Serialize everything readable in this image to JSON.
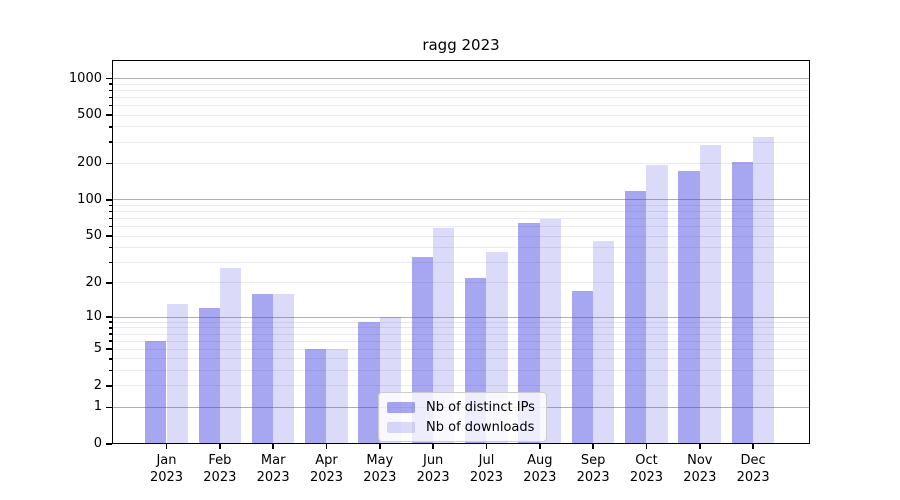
{
  "title": "ragg 2023",
  "chart_data": {
    "type": "bar",
    "title": "ragg 2023",
    "categories": [
      "Jan 2023",
      "Feb 2023",
      "Mar 2023",
      "Apr 2023",
      "May 2023",
      "Jun 2023",
      "Jul 2023",
      "Aug 2023",
      "Sep 2023",
      "Oct 2023",
      "Nov 2023",
      "Dec 2023"
    ],
    "series": [
      {
        "name": "Nb of distinct IPs",
        "color": "rgba(64,64,224,0.46)",
        "values": [
          6,
          12,
          16,
          5,
          9,
          33,
          22,
          64,
          17,
          118,
          175,
          205
        ]
      },
      {
        "name": "Nb of downloads",
        "color": "rgba(64,64,224,0.19)",
        "values": [
          13,
          27,
          16,
          5,
          10,
          58,
          37,
          70,
          45,
          195,
          285,
          330
        ]
      }
    ],
    "xlabel": "",
    "ylabel": "",
    "yscale": "log1p",
    "ylim": [
      0,
      1421
    ],
    "yticks": [
      0,
      1,
      2,
      5,
      10,
      20,
      50,
      100,
      200,
      500,
      1000
    ],
    "ytick_labels": [
      "0",
      "1",
      "2",
      "5",
      "10",
      "20",
      "50",
      "100",
      "200",
      "500",
      "1000"
    ],
    "major_gridlines": [
      1,
      10,
      100,
      1000
    ],
    "minor_gridlines": [
      2,
      3,
      4,
      5,
      6,
      7,
      8,
      9,
      20,
      30,
      40,
      50,
      60,
      70,
      80,
      90,
      200,
      300,
      400,
      500,
      600,
      700,
      800,
      900
    ],
    "grid": true,
    "legend_position": "lower center"
  },
  "legend": {
    "items": [
      {
        "label": "Nb of distinct IPs"
      },
      {
        "label": "Nb of downloads"
      }
    ]
  },
  "colors": {
    "bar_distinct_ips": "rgba(64,64,224,0.46)",
    "bar_downloads": "rgba(64,64,224,0.19)",
    "major_grid": "#b0b0b0",
    "minor_grid": "#e9e9ef",
    "spine": "#000000",
    "background": "#ffffff"
  }
}
